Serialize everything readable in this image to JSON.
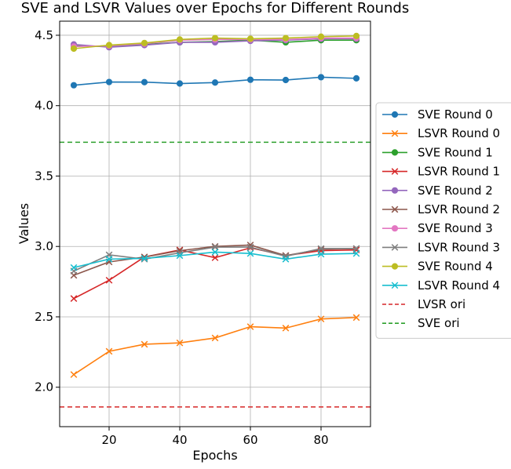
{
  "chart_data": {
    "type": "line",
    "title": "SVE and LSVR Values over Epochs for Different Rounds",
    "xlabel": "Epochs",
    "ylabel": "Values",
    "xlim": [
      6,
      94
    ],
    "ylim": [
      1.72,
      4.6
    ],
    "xticks": [
      20,
      40,
      60,
      80
    ],
    "yticks": [
      2.0,
      2.5,
      3.0,
      3.5,
      4.0,
      4.5
    ],
    "grid": true,
    "legend_position": "outside right",
    "x": [
      10,
      20,
      30,
      40,
      50,
      60,
      70,
      80,
      90
    ],
    "series": [
      {
        "name": "SVE Round 0",
        "marker": "circle",
        "color": "#1f77b4",
        "values": [
          4.145,
          4.168,
          4.167,
          4.157,
          4.164,
          4.184,
          4.182,
          4.202,
          4.194
        ]
      },
      {
        "name": "LSVR Round 0",
        "marker": "x",
        "color": "#ff7f0e",
        "values": [
          2.09,
          2.255,
          2.305,
          2.315,
          2.35,
          2.43,
          2.42,
          2.485,
          2.495
        ]
      },
      {
        "name": "SVE Round 1",
        "marker": "circle",
        "color": "#2ca02c",
        "values": [
          4.425,
          4.42,
          4.435,
          4.45,
          4.455,
          4.465,
          4.45,
          4.465,
          4.465
        ]
      },
      {
        "name": "LSVR Round 1",
        "marker": "x",
        "color": "#d62728",
        "values": [
          2.63,
          2.76,
          2.925,
          2.975,
          2.92,
          2.99,
          2.935,
          2.97,
          2.975
        ]
      },
      {
        "name": "SVE Round 2",
        "marker": "circle",
        "color": "#9467bd",
        "values": [
          4.435,
          4.415,
          4.43,
          4.45,
          4.45,
          4.46,
          4.465,
          4.475,
          4.475
        ]
      },
      {
        "name": "LSVR Round 2",
        "marker": "x",
        "color": "#8c564b",
        "values": [
          2.795,
          2.89,
          2.925,
          2.97,
          3.0,
          3.01,
          2.935,
          2.98,
          2.985
        ]
      },
      {
        "name": "SVE Round 3",
        "marker": "circle",
        "color": "#e377c2",
        "values": [
          4.42,
          4.425,
          4.44,
          4.465,
          4.47,
          4.47,
          4.47,
          4.48,
          4.48
        ]
      },
      {
        "name": "LSVR Round 3",
        "marker": "x",
        "color": "#7f7f7f",
        "values": [
          2.825,
          2.94,
          2.91,
          2.955,
          2.995,
          2.995,
          2.93,
          2.985,
          2.985
        ]
      },
      {
        "name": "SVE Round 4",
        "marker": "circle",
        "color": "#bcbd22",
        "values": [
          4.405,
          4.43,
          4.445,
          4.47,
          4.48,
          4.475,
          4.48,
          4.49,
          4.495
        ]
      },
      {
        "name": "LSVR Round 4",
        "marker": "x",
        "color": "#17becf",
        "values": [
          2.85,
          2.91,
          2.915,
          2.935,
          2.96,
          2.95,
          2.91,
          2.945,
          2.95
        ]
      }
    ],
    "reference_lines": [
      {
        "name": "LVSR ori",
        "value": 1.86,
        "color": "#d62728",
        "style": "dashed"
      },
      {
        "name": "SVE ori",
        "value": 3.74,
        "color": "#2ca02c",
        "style": "dashed"
      }
    ]
  }
}
